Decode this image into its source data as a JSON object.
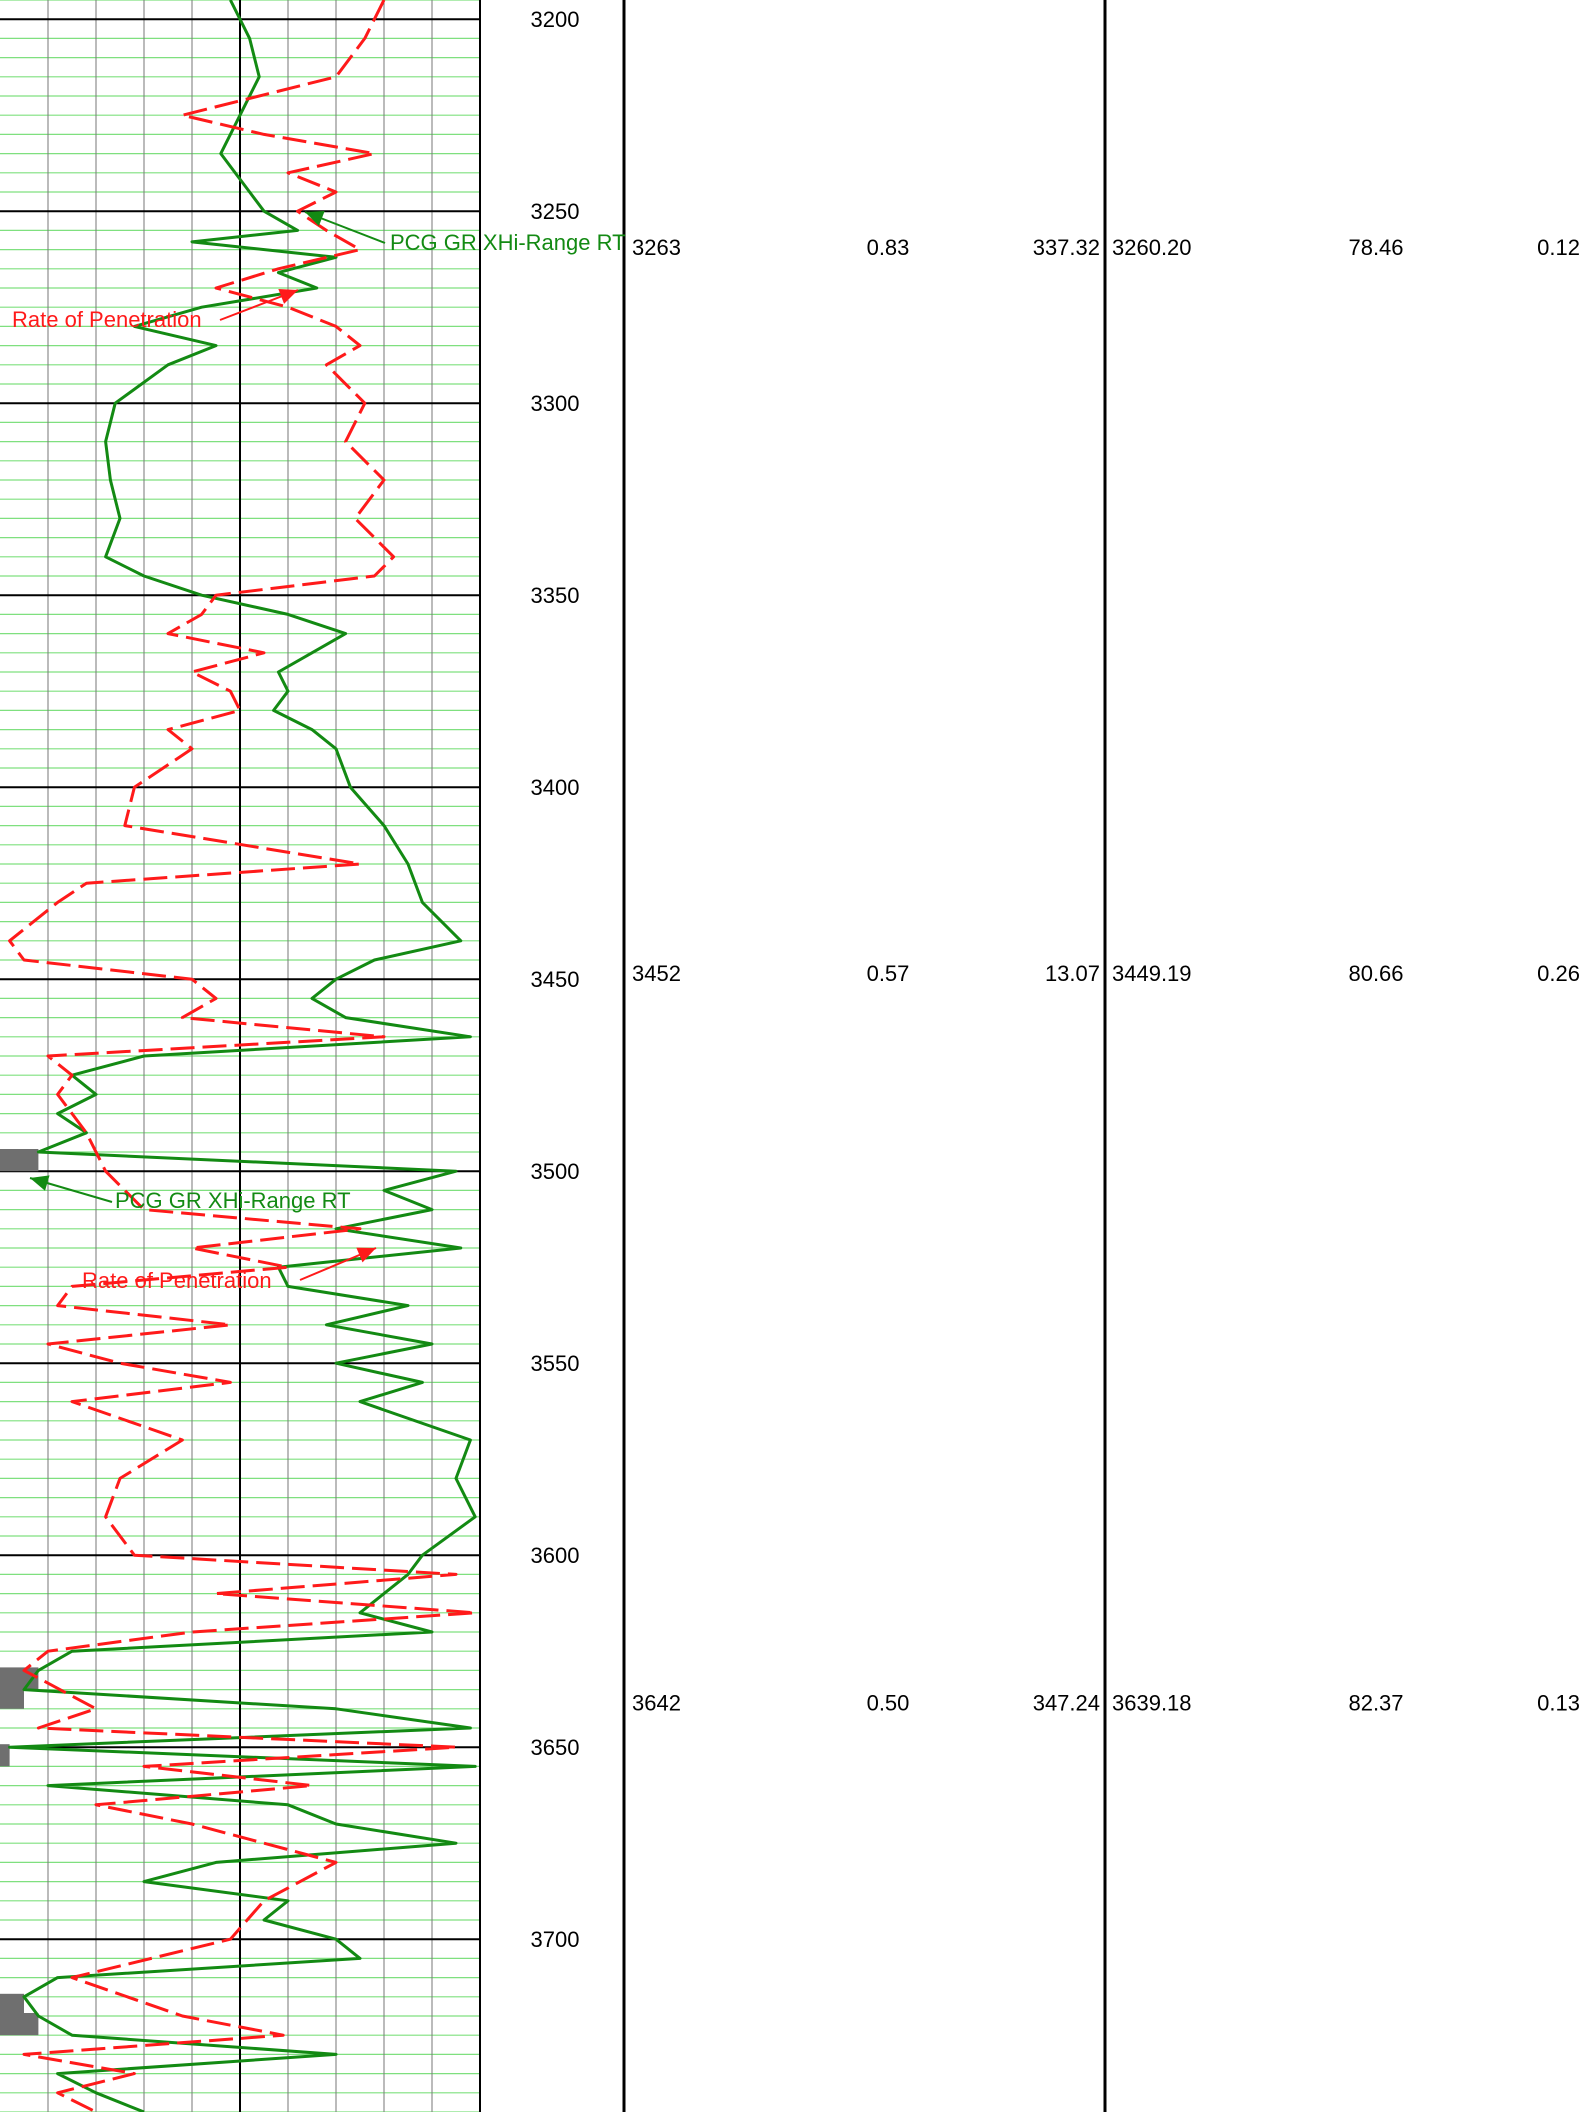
{
  "colors": {
    "gamma_ray": "#138a13",
    "rop": "#ff1a1a",
    "shale_fill": "#6f6f6f",
    "minor_grid": "#7fe07f",
    "vertical_grid": "#777777",
    "major_grid": "#000000"
  },
  "curve_labels": {
    "gamma_ray": "PCG GR XHi-Range RT",
    "rop": "Rate of Penetration"
  },
  "depth_ticks": [
    "3200",
    "3250",
    "3300",
    "3350",
    "3400",
    "3450",
    "3500",
    "3550",
    "3600",
    "3650",
    "3700"
  ],
  "table": {
    "rows": [
      [
        "3263",
        "0.83",
        "337.32",
        "3260.20",
        "78.46",
        "0.12"
      ],
      [
        "3452",
        "0.57",
        "13.07",
        "3449.19",
        "80.66",
        "0.26"
      ],
      [
        "3642",
        "0.50",
        "347.24",
        "3639.18",
        "82.37",
        "0.13"
      ]
    ]
  },
  "chart_data": {
    "type": "line",
    "y_axis": "depth",
    "ylim": [
      3195,
      3745
    ],
    "minor_grid_interval": 5,
    "major_grid_interval": 50,
    "gr_cutoff": 10,
    "series": [
      {
        "name": "PCG GR XHi-Range RT",
        "color": "#138a13",
        "line_style": "solid",
        "depth": [
          3195,
          3205,
          3215,
          3225,
          3235,
          3245,
          3250,
          3255,
          3258,
          3262,
          3266,
          3270,
          3275,
          3280,
          3285,
          3290,
          3300,
          3310,
          3320,
          3330,
          3340,
          3345,
          3350,
          3355,
          3360,
          3365,
          3370,
          3375,
          3380,
          3385,
          3390,
          3400,
          3410,
          3420,
          3430,
          3440,
          3445,
          3450,
          3455,
          3460,
          3465,
          3470,
          3475,
          3480,
          3485,
          3490,
          3495,
          3500,
          3505,
          3510,
          3515,
          3520,
          3525,
          3530,
          3535,
          3540,
          3545,
          3550,
          3555,
          3560,
          3570,
          3580,
          3590,
          3600,
          3605,
          3610,
          3615,
          3620,
          3625,
          3630,
          3635,
          3640,
          3645,
          3650,
          3655,
          3660,
          3665,
          3670,
          3675,
          3680,
          3685,
          3690,
          3695,
          3700,
          3705,
          3710,
          3715,
          3720,
          3725,
          3730,
          3735,
          3740,
          3745
        ],
        "values": [
          48,
          52,
          54,
          50,
          46,
          52,
          55,
          62,
          40,
          70,
          58,
          66,
          42,
          28,
          45,
          35,
          24,
          22,
          23,
          25,
          22,
          30,
          42,
          60,
          72,
          65,
          58,
          60,
          57,
          65,
          70,
          73,
          80,
          85,
          88,
          96,
          78,
          70,
          65,
          72,
          98,
          30,
          15,
          20,
          12,
          18,
          8,
          95,
          80,
          90,
          70,
          96,
          58,
          60,
          85,
          68,
          90,
          70,
          88,
          75,
          98,
          95,
          99,
          88,
          85,
          80,
          75,
          90,
          15,
          8,
          5,
          70,
          98,
          2,
          99,
          10,
          60,
          70,
          95,
          45,
          30,
          60,
          55,
          70,
          75,
          12,
          5,
          8,
          15,
          70,
          12,
          20,
          30
        ]
      },
      {
        "name": "Rate of Penetration",
        "color": "#ff1a1a",
        "line_style": "dashed",
        "depth": [
          3195,
          3205,
          3215,
          3225,
          3230,
          3235,
          3240,
          3245,
          3250,
          3255,
          3260,
          3265,
          3270,
          3275,
          3280,
          3285,
          3290,
          3300,
          3310,
          3320,
          3330,
          3340,
          3345,
          3350,
          3355,
          3360,
          3365,
          3370,
          3375,
          3380,
          3385,
          3390,
          3400,
          3410,
          3420,
          3425,
          3430,
          3440,
          3445,
          3450,
          3455,
          3460,
          3465,
          3470,
          3475,
          3480,
          3490,
          3500,
          3510,
          3515,
          3520,
          3525,
          3530,
          3535,
          3540,
          3545,
          3550,
          3555,
          3560,
          3570,
          3580,
          3590,
          3600,
          3605,
          3610,
          3615,
          3620,
          3625,
          3630,
          3640,
          3645,
          3650,
          3655,
          3660,
          3665,
          3670,
          3680,
          3690,
          3700,
          3710,
          3720,
          3725,
          3730,
          3735,
          3740,
          3745
        ],
        "values": [
          80,
          76,
          70,
          38,
          55,
          78,
          60,
          70,
          62,
          68,
          75,
          58,
          45,
          60,
          70,
          75,
          68,
          76,
          72,
          80,
          74,
          82,
          78,
          45,
          42,
          35,
          55,
          40,
          48,
          50,
          35,
          40,
          28,
          26,
          75,
          18,
          12,
          2,
          5,
          40,
          45,
          38,
          80,
          10,
          15,
          12,
          18,
          22,
          30,
          75,
          40,
          60,
          15,
          12,
          48,
          10,
          25,
          48,
          15,
          38,
          25,
          22,
          28,
          95,
          45,
          99,
          40,
          10,
          5,
          20,
          8,
          95,
          30,
          65,
          20,
          40,
          70,
          55,
          48,
          15,
          38,
          59,
          5,
          28,
          12,
          20
        ]
      }
    ],
    "annotations": [
      {
        "text": "PCG GR XHi-Range RT",
        "series": "PCG GR XHi-Range RT",
        "depth": 3257
      },
      {
        "text": "Rate of Penetration",
        "series": "Rate of Penetration",
        "depth": 3273
      },
      {
        "text": "PCG GR XHi-Range RT",
        "series": "PCG GR XHi-Range RT",
        "depth": 3507
      },
      {
        "text": "Rate of Penetration",
        "series": "Rate of Penetration",
        "depth": 3527
      }
    ]
  }
}
